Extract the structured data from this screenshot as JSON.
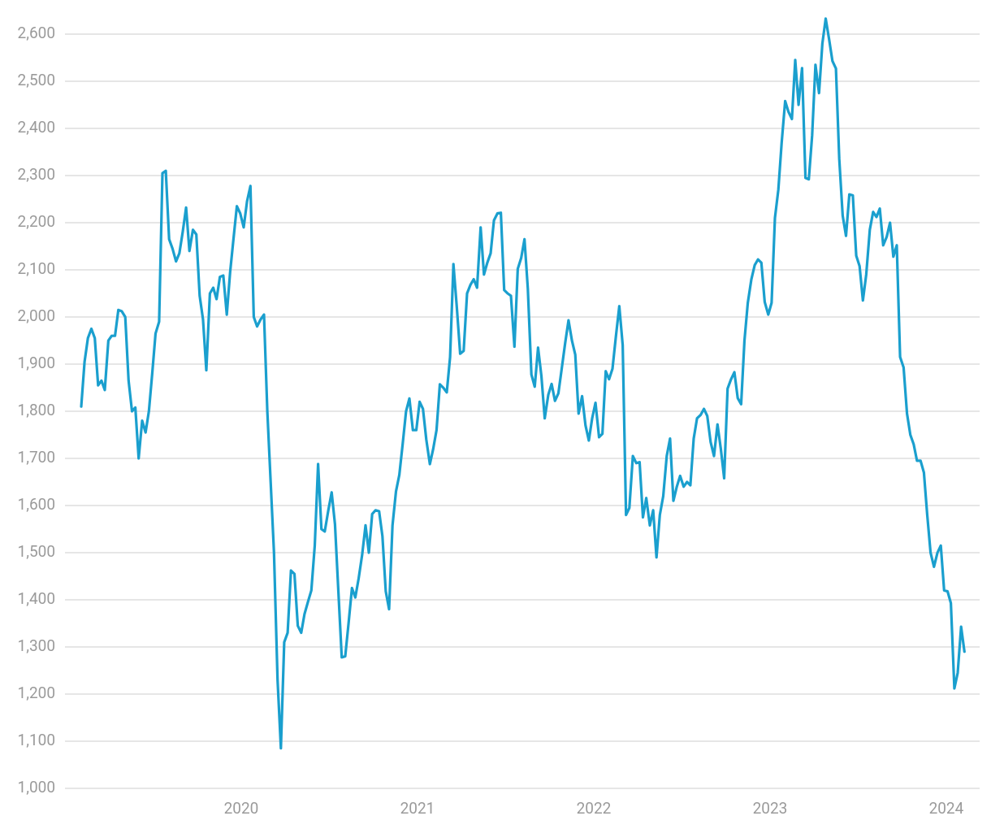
{
  "chart_data": {
    "type": "line",
    "color": "#1a9fce",
    "grid": true,
    "xlim": [
      2019.0,
      2024.18
    ],
    "xticks": [
      2020,
      2021,
      2022,
      2023,
      2024
    ],
    "ylim": [
      1000,
      2650
    ],
    "yticks": [
      {
        "value": 1000,
        "label": "1,000"
      },
      {
        "value": 1100,
        "label": "1,100"
      },
      {
        "value": 1200,
        "label": "1,200"
      },
      {
        "value": 1300,
        "label": "1,300"
      },
      {
        "value": 1400,
        "label": "1,400"
      },
      {
        "value": 1500,
        "label": "1,500"
      },
      {
        "value": 1600,
        "label": "1,600"
      },
      {
        "value": 1700,
        "label": "1,700"
      },
      {
        "value": 1800,
        "label": "1,800"
      },
      {
        "value": 1900,
        "label": "1,900"
      },
      {
        "value": 2000,
        "label": "2,000"
      },
      {
        "value": 2100,
        "label": "2,100"
      },
      {
        "value": 2200,
        "label": "2,200"
      },
      {
        "value": 2300,
        "label": "2,300"
      },
      {
        "value": 2400,
        "label": "2,400"
      },
      {
        "value": 2500,
        "label": "2,500"
      },
      {
        "value": 2600,
        "label": "2,600"
      }
    ],
    "x": [
      2019.092,
      2019.111,
      2019.13,
      2019.15,
      2019.169,
      2019.188,
      2019.207,
      2019.226,
      2019.246,
      2019.265,
      2019.284,
      2019.303,
      2019.322,
      2019.342,
      2019.361,
      2019.38,
      2019.399,
      2019.418,
      2019.438,
      2019.457,
      2019.476,
      2019.495,
      2019.514,
      2019.534,
      2019.553,
      2019.572,
      2019.591,
      2019.61,
      2019.63,
      2019.649,
      2019.668,
      2019.687,
      2019.706,
      2019.726,
      2019.745,
      2019.764,
      2019.783,
      2019.802,
      2019.822,
      2019.841,
      2019.86,
      2019.879,
      2019.898,
      2019.918,
      2019.937,
      2019.956,
      2019.975,
      2019.994,
      2020.014,
      2020.033,
      2020.052,
      2020.071,
      2020.09,
      2020.11,
      2020.129,
      2020.148,
      2020.167,
      2020.186,
      2020.206,
      2020.225,
      2020.244,
      2020.263,
      2020.282,
      2020.302,
      2020.321,
      2020.34,
      2020.359,
      2020.378,
      2020.398,
      2020.417,
      2020.436,
      2020.455,
      2020.474,
      2020.494,
      2020.513,
      2020.532,
      2020.551,
      2020.57,
      2020.59,
      2020.609,
      2020.628,
      2020.647,
      2020.666,
      2020.686,
      2020.705,
      2020.724,
      2020.743,
      2020.762,
      2020.782,
      2020.801,
      2020.82,
      2020.839,
      2020.858,
      2020.878,
      2020.897,
      2020.916,
      2020.935,
      2020.954,
      2020.974,
      2020.993,
      2021.012,
      2021.031,
      2021.05,
      2021.07,
      2021.089,
      2021.108,
      2021.127,
      2021.146,
      2021.166,
      2021.185,
      2021.204,
      2021.223,
      2021.242,
      2021.262,
      2021.281,
      2021.3,
      2021.319,
      2021.338,
      2021.358,
      2021.377,
      2021.396,
      2021.415,
      2021.434,
      2021.454,
      2021.473,
      2021.492,
      2021.511,
      2021.53,
      2021.55,
      2021.569,
      2021.588,
      2021.607,
      2021.626,
      2021.646,
      2021.665,
      2021.684,
      2021.703,
      2021.722,
      2021.742,
      2021.761,
      2021.78,
      2021.799,
      2021.818,
      2021.838,
      2021.857,
      2021.876,
      2021.895,
      2021.914,
      2021.934,
      2021.953,
      2021.972,
      2021.991,
      2022.01,
      2022.03,
      2022.049,
      2022.068,
      2022.087,
      2022.106,
      2022.126,
      2022.145,
      2022.164,
      2022.183,
      2022.202,
      2022.222,
      2022.241,
      2022.26,
      2022.279,
      2022.298,
      2022.318,
      2022.337,
      2022.356,
      2022.375,
      2022.394,
      2022.414,
      2022.433,
      2022.452,
      2022.471,
      2022.49,
      2022.51,
      2022.529,
      2022.548,
      2022.567,
      2022.586,
      2022.606,
      2022.625,
      2022.644,
      2022.663,
      2022.682,
      2022.702,
      2022.721,
      2022.74,
      2022.759,
      2022.778,
      2022.798,
      2022.817,
      2022.836,
      2022.855,
      2022.874,
      2022.894,
      2022.913,
      2022.932,
      2022.951,
      2022.97,
      2022.99,
      2023.009,
      2023.028,
      2023.047,
      2023.066,
      2023.086,
      2023.105,
      2023.124,
      2023.143,
      2023.162,
      2023.182,
      2023.201,
      2023.22,
      2023.239,
      2023.258,
      2023.278,
      2023.297,
      2023.316,
      2023.335,
      2023.354,
      2023.374,
      2023.393,
      2023.412,
      2023.431,
      2023.45,
      2023.47,
      2023.489,
      2023.508,
      2023.527,
      2023.546,
      2023.566,
      2023.585,
      2023.604,
      2023.623,
      2023.642,
      2023.662,
      2023.681,
      2023.7,
      2023.719,
      2023.738,
      2023.758,
      2023.777,
      2023.796,
      2023.815,
      2023.834,
      2023.854,
      2023.873,
      2023.892,
      2023.911,
      2023.93,
      2023.95,
      2023.969,
      2023.988,
      2024.007,
      2024.026,
      2024.046,
      2024.065,
      2024.084,
      2024.103
    ],
    "values": [
      1810,
      1905,
      1955,
      1975,
      1955,
      1855,
      1865,
      1845,
      1950,
      1960,
      1960,
      2015,
      2012,
      2000,
      1865,
      1800,
      1808,
      1700,
      1780,
      1755,
      1800,
      1880,
      1965,
      1990,
      2305,
      2310,
      2165,
      2145,
      2118,
      2135,
      2180,
      2232,
      2140,
      2185,
      2175,
      2045,
      1995,
      1887,
      2050,
      2062,
      2038,
      2085,
      2088,
      2005,
      2095,
      2165,
      2235,
      2220,
      2190,
      2245,
      2278,
      2000,
      1980,
      1995,
      2005,
      1800,
      1650,
      1500,
      1230,
      1085,
      1310,
      1330,
      1462,
      1455,
      1345,
      1330,
      1370,
      1395,
      1420,
      1515,
      1688,
      1550,
      1545,
      1590,
      1628,
      1560,
      1420,
      1278,
      1280,
      1350,
      1425,
      1405,
      1445,
      1495,
      1558,
      1500,
      1582,
      1590,
      1588,
      1535,
      1418,
      1380,
      1558,
      1630,
      1665,
      1730,
      1800,
      1827,
      1760,
      1760,
      1820,
      1805,
      1740,
      1688,
      1720,
      1760,
      1857,
      1850,
      1840,
      1915,
      2112,
      2020,
      1922,
      1928,
      2050,
      2068,
      2080,
      2062,
      2190,
      2090,
      2115,
      2135,
      2205,
      2220,
      2221,
      2057,
      2050,
      2045,
      1937,
      2102,
      2125,
      2165,
      2060,
      1878,
      1852,
      1935,
      1875,
      1785,
      1835,
      1858,
      1822,
      1838,
      1890,
      1945,
      1993,
      1950,
      1920,
      1795,
      1832,
      1770,
      1738,
      1785,
      1818,
      1745,
      1752,
      1885,
      1868,
      1890,
      1960,
      2023,
      1940,
      1580,
      1595,
      1705,
      1690,
      1692,
      1575,
      1616,
      1558,
      1590,
      1490,
      1580,
      1620,
      1705,
      1742,
      1610,
      1640,
      1663,
      1640,
      1650,
      1643,
      1742,
      1785,
      1792,
      1805,
      1790,
      1735,
      1705,
      1772,
      1720,
      1658,
      1848,
      1867,
      1883,
      1828,
      1815,
      1950,
      2030,
      2080,
      2110,
      2122,
      2115,
      2032,
      2005,
      2030,
      2210,
      2270,
      2370,
      2458,
      2435,
      2420,
      2545,
      2450,
      2528,
      2295,
      2292,
      2385,
      2535,
      2475,
      2580,
      2633,
      2590,
      2543,
      2527,
      2335,
      2215,
      2172,
      2260,
      2258,
      2130,
      2108,
      2035,
      2090,
      2185,
      2223,
      2212,
      2230,
      2152,
      2170,
      2200,
      2128,
      2152,
      1915,
      1893,
      1795,
      1750,
      1730,
      1695,
      1695,
      1670,
      1580,
      1500,
      1470,
      1500,
      1515,
      1420,
      1418,
      1393,
      1212,
      1245,
      1343,
      1290
    ]
  }
}
